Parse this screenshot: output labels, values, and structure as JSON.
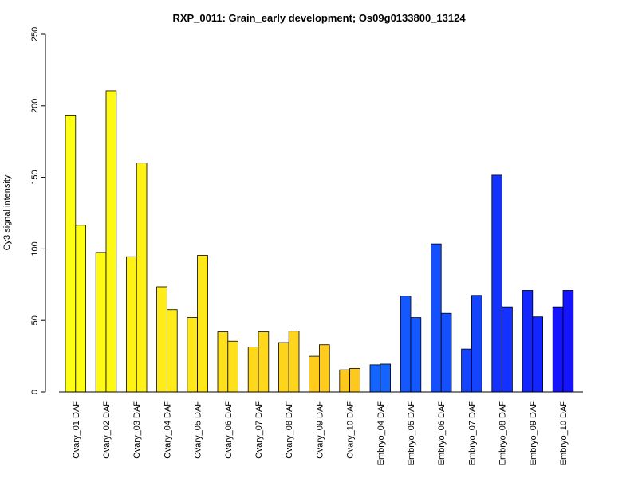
{
  "chart_data": {
    "type": "bar",
    "title": "RXP_0011: Grain_early development; Os09g0133800_13124",
    "xlabel": "",
    "ylabel": "Cy3 signal intensity",
    "ylim": [
      0,
      250
    ],
    "yticks": [
      0,
      50,
      100,
      150,
      200,
      250
    ],
    "grid": false,
    "legend": "none",
    "categories": [
      "Ovary_01 DAF",
      "Ovary_02 DAF",
      "Ovary_03 DAF",
      "Ovary_04 DAF",
      "Ovary_05 DAF",
      "Ovary_06 DAF",
      "Ovary_07 DAF",
      "Ovary_08 DAF",
      "Ovary_09 DAF",
      "Ovary_10 DAF",
      "Embryo_04 DAF",
      "Embryo_05 DAF",
      "Embryo_06 DAF",
      "Embryo_07 DAF",
      "Embryo_08 DAF",
      "Embryo_09 DAF",
      "Embryo_10 DAF"
    ],
    "colors": [
      "#ffff14",
      "#fffa14",
      "#fff214",
      "#ffec18",
      "#ffe81a",
      "#ffe01c",
      "#ffd81c",
      "#ffd41c",
      "#ffcc1c",
      "#ffc81c",
      "#1464ff",
      "#1458ff",
      "#1450ff",
      "#1444ff",
      "#1432ff",
      "#1426ff",
      "#1414ff"
    ],
    "series": [
      {
        "values": [
          193.5,
          97.5,
          94.5,
          73.5,
          52,
          42,
          31.5,
          34.5,
          25,
          15.5,
          19,
          67,
          103.5,
          30,
          151.5,
          71,
          59.5
        ]
      },
      {
        "values": [
          116.5,
          210.5,
          160,
          57.5,
          95.5,
          35.5,
          42,
          42.5,
          33,
          16.5,
          19.5,
          52,
          55,
          67.5,
          59.5,
          52.5,
          71
        ]
      }
    ]
  }
}
